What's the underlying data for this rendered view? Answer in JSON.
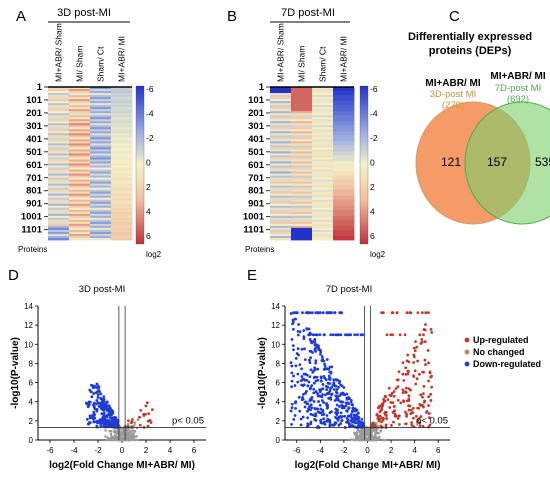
{
  "panels": {
    "A": {
      "letter": "A",
      "title": "3D post-MI",
      "columns": [
        "MI+ABR/ Sham",
        "MI/ Sham",
        "Sham/ Ct",
        "MI+ABR/ MI"
      ]
    },
    "B": {
      "letter": "B",
      "title": "7D post-MI",
      "columns": [
        "MI+ABR/ Sham",
        "MI/ Sham",
        "Sham/ Ct",
        "MI+ABR/ MI"
      ]
    },
    "C": {
      "letter": "C",
      "title_line1": "Differentially expressed",
      "title_line2": "proteins (DEPs)",
      "left_group": "MI+ABR/ MI",
      "left_sub1": "3D-post MI",
      "left_sub2": "(278)",
      "right_group": "MI+ABR/ MI",
      "right_sub1": "7D-post MI",
      "right_sub2": "(692)",
      "left_only": "121",
      "overlap": "157",
      "right_only": "535"
    },
    "D": {
      "letter": "D",
      "title": "3D post-MI",
      "threshold": "p< 0.05"
    },
    "E": {
      "letter": "E",
      "title": "7D post-MI",
      "threshold": "p< 0.05"
    }
  },
  "heatmap_rows": [
    "1",
    "101",
    "201",
    "301",
    "401",
    "501",
    "601",
    "701",
    "801",
    "901",
    "1001",
    "1101"
  ],
  "heatmap_footer": "Proteins",
  "colorbar": {
    "ticks": [
      "-6",
      "-4",
      "-2",
      "0",
      "2",
      "4",
      "6"
    ],
    "unit": "log2"
  },
  "legend": [
    {
      "label": "Up-regulated",
      "color": "#c0392b"
    },
    {
      "label": "No changed",
      "color": "#d97b5a"
    },
    {
      "label": "Down-regulated",
      "color": "#1f3bd6"
    }
  ],
  "chart_data": [
    {
      "type": "heatmap",
      "title": "3D post-MI",
      "columns": [
        "MI+ABR/ Sham",
        "MI/ Sham",
        "Sham/ Ct",
        "MI+ABR/ MI"
      ],
      "rows": 1180,
      "value_range": [
        -6,
        6
      ],
      "unit": "log2"
    },
    {
      "type": "heatmap",
      "title": "7D post-MI",
      "columns": [
        "MI+ABR/ Sham",
        "MI/ Sham",
        "Sham/ Ct",
        "MI+ABR/ MI"
      ],
      "rows": 1180,
      "value_range": [
        -6,
        6
      ],
      "unit": "log2"
    },
    {
      "type": "venn",
      "sets": [
        {
          "name": "MI+ABR/ MI 3D-post MI",
          "size": 278
        },
        {
          "name": "MI+ABR/ MI 7D-post MI",
          "size": 692
        }
      ],
      "regions": {
        "left_only": 121,
        "overlap": 157,
        "right_only": 535
      }
    },
    {
      "type": "scatter",
      "title": "3D post-MI",
      "xlabel": "log2(Fold Change MI+ABR/ MI)",
      "ylabel": "-log10(P-value)",
      "xlim": [
        -7,
        7
      ],
      "ylim": [
        0,
        14
      ],
      "xticks": [
        -6,
        -4,
        -2,
        0,
        2,
        4,
        6
      ],
      "yticks": [
        0,
        2,
        4,
        6,
        8,
        10,
        12,
        14
      ],
      "threshold_y": 1.3,
      "fc_lines": [
        -0.26,
        0.26
      ],
      "series": [
        {
          "name": "Up-regulated",
          "n": 22,
          "x_range": [
            0.3,
            2.6
          ],
          "y_range": [
            1.3,
            4.2
          ]
        },
        {
          "name": "Down-regulated",
          "n": 256,
          "x_range": [
            -3,
            -0.3
          ],
          "y_range": [
            1.3,
            6
          ]
        }
      ]
    },
    {
      "type": "scatter",
      "title": "7D post-MI",
      "xlabel": "log2(Fold Change MI+ABR/ MI)",
      "ylabel": "-log10(P-value)",
      "xlim": [
        -7,
        7
      ],
      "ylim": [
        0,
        14
      ],
      "xticks": [
        -6,
        -4,
        -2,
        0,
        2,
        4,
        6
      ],
      "yticks": [
        0,
        2,
        4,
        6,
        8,
        10,
        12,
        14
      ],
      "threshold_y": 1.3,
      "fc_lines": [
        -0.26,
        0.26
      ],
      "series": [
        {
          "name": "Up-regulated",
          "n": 205,
          "x_range": [
            0.3,
            5.5
          ],
          "y_range": [
            1.3,
            13.3
          ]
        },
        {
          "name": "Down-regulated",
          "n": 487,
          "x_range": [
            -6.5,
            -0.3
          ],
          "y_range": [
            1.3,
            13.3
          ]
        }
      ]
    }
  ]
}
